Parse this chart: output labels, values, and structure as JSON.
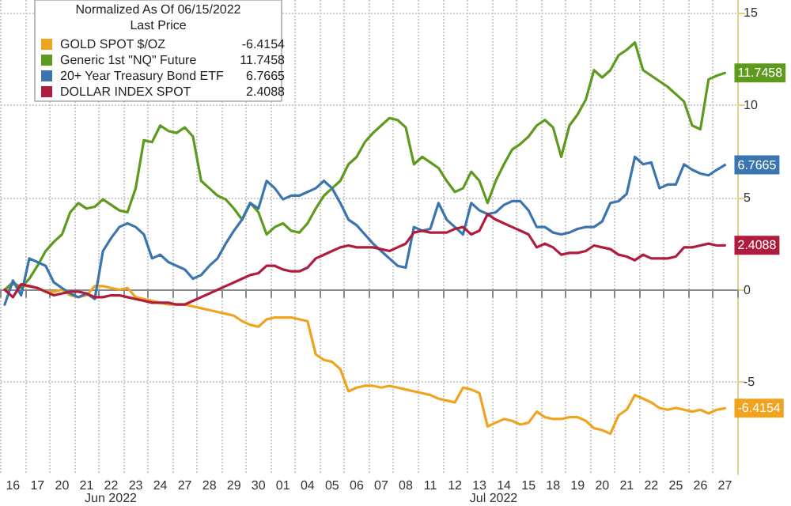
{
  "chart_data": {
    "type": "line",
    "legend_title": "Normalized As Of 06/15/2022",
    "annotations": [
      "Last Price",
      "Jun 2022",
      "Jul 2022"
    ],
    "categories": [
      null,
      "16",
      null,
      null,
      "17",
      null,
      null,
      "20",
      null,
      null,
      "21",
      null,
      null,
      "22",
      null,
      null,
      "23",
      null,
      null,
      "24",
      null,
      null,
      "27",
      null,
      null,
      "28",
      null,
      null,
      "29",
      null,
      null,
      "30",
      null,
      null,
      "01",
      null,
      null,
      "04",
      null,
      null,
      "05",
      null,
      null,
      "06",
      null,
      null,
      "07",
      null,
      null,
      "08",
      null,
      null,
      "11",
      null,
      null,
      "12",
      null,
      null,
      "13",
      null,
      null,
      "14",
      null,
      null,
      "15",
      null,
      null,
      "18",
      null,
      null,
      "19",
      null,
      null,
      "20",
      null,
      null,
      "21",
      null,
      null,
      "22",
      null,
      null,
      "25",
      null,
      null,
      "26",
      null,
      null,
      "27",
      null
    ],
    "series": [
      {
        "name": "GOLD SPOT $/OZ",
        "color": "#f0a31e",
        "values": [
          0,
          0.3,
          0.2,
          0.2,
          0.1,
          -0.1,
          -0.1,
          0,
          -0.3,
          -0.4,
          -0.3,
          0.2,
          0.2,
          0.1,
          0,
          0.1,
          -0.4,
          -0.5,
          -0.6,
          -0.7,
          -0.8,
          -0.8,
          -0.8,
          -0.9,
          -1.0,
          -1.1,
          -1.2,
          -1.3,
          -1.4,
          -1.7,
          -1.9,
          -2.0,
          -1.6,
          -1.5,
          -1.5,
          -1.5,
          -1.6,
          -1.7,
          -3.5,
          -3.8,
          -3.9,
          -4.3,
          -5.5,
          -5.3,
          -5.2,
          -5.2,
          -5.3,
          -5.2,
          -5.3,
          -5.4,
          -5.5,
          -5.6,
          -5.7,
          -5.9,
          -6.0,
          -6.1,
          -5.3,
          -5.4,
          -5.6,
          -7.4,
          -7.2,
          -7.0,
          -7.1,
          -7.3,
          -7.2,
          -6.6,
          -6.9,
          -7.0,
          -7.0,
          -6.9,
          -6.9,
          -7.1,
          -7.5,
          -7.6,
          -7.8,
          -6.8,
          -6.5,
          -5.7,
          -5.9,
          -6.1,
          -6.4,
          -6.5,
          -6.4,
          -6.5,
          -6.6,
          -6.5,
          -6.7,
          -6.5,
          -6.4154,
          null
        ],
        "value_labels": [
          null,
          null,
          null,
          null,
          null,
          null,
          null,
          null,
          null,
          null,
          null,
          null,
          null,
          null,
          null,
          null,
          null,
          null,
          null,
          null,
          null,
          null,
          null,
          null,
          null,
          null,
          null,
          null,
          null,
          null,
          null,
          null,
          null,
          null,
          null,
          null,
          null,
          null,
          null,
          null,
          null,
          null,
          null,
          null,
          null,
          null,
          null,
          null,
          null,
          null,
          null,
          null,
          null,
          null,
          null,
          null,
          null,
          null,
          null,
          null,
          null,
          null,
          null,
          null,
          null,
          null,
          null,
          null,
          null,
          null,
          null,
          null,
          null,
          null,
          null,
          null,
          null,
          null,
          null,
          null,
          null,
          null,
          null,
          null,
          null,
          null,
          null,
          null,
          "-6.4154",
          null
        ]
      },
      {
        "name": "Generic 1st \"NQ\" Future",
        "color": "#5e9a1e",
        "values": [
          0,
          0.4,
          0.1,
          0.6,
          1.3,
          2.1,
          2.6,
          3.0,
          4.2,
          4.7,
          4.4,
          4.5,
          4.9,
          4.6,
          4.3,
          4.2,
          5.5,
          8.1,
          8.0,
          8.9,
          8.6,
          8.5,
          8.8,
          8.3,
          5.9,
          5.5,
          5.1,
          4.9,
          4.4,
          3.8,
          4.7,
          4.2,
          3.0,
          3.4,
          3.6,
          3.2,
          3.1,
          3.6,
          4.4,
          5.1,
          5.5,
          5.9,
          6.8,
          7.2,
          8.0,
          8.5,
          8.9,
          9.3,
          9.2,
          8.8,
          6.8,
          7.2,
          6.9,
          6.6,
          5.9,
          5.3,
          5.5,
          6.4,
          5.9,
          4.7,
          5.9,
          6.8,
          7.6,
          7.9,
          8.3,
          8.9,
          9.2,
          8.8,
          7.2,
          8.9,
          9.5,
          10.3,
          11.9,
          11.5,
          11.9,
          12.7,
          13.0,
          13.4,
          11.9,
          11.6,
          11.3,
          11.0,
          10.6,
          10.2,
          8.9,
          8.7,
          11.4,
          11.6,
          11.7458,
          null
        ],
        "value_labels": [
          null,
          null,
          null,
          null,
          null,
          null,
          null,
          null,
          null,
          null,
          null,
          null,
          null,
          null,
          null,
          null,
          null,
          null,
          null,
          null,
          null,
          null,
          null,
          null,
          null,
          null,
          null,
          null,
          null,
          null,
          null,
          null,
          null,
          null,
          null,
          null,
          null,
          null,
          null,
          null,
          null,
          null,
          null,
          null,
          null,
          null,
          null,
          null,
          null,
          null,
          null,
          null,
          null,
          null,
          null,
          null,
          null,
          null,
          null,
          null,
          null,
          null,
          null,
          null,
          null,
          null,
          null,
          null,
          null,
          null,
          null,
          null,
          null,
          null,
          null,
          null,
          null,
          null,
          null,
          null,
          null,
          null,
          null,
          null,
          null,
          null,
          null,
          null,
          "11.7458",
          null
        ]
      },
      {
        "name": "20+ Year Treasury Bond ETF",
        "color": "#3a75b0",
        "values": [
          -0.8,
          0.5,
          -0.3,
          1.7,
          1.5,
          1.3,
          0.4,
          0.1,
          -0.2,
          -0.4,
          -0.2,
          -0.5,
          2.1,
          2.8,
          3.4,
          3.6,
          3.4,
          3.0,
          1.7,
          1.9,
          1.5,
          1.3,
          1.1,
          0.6,
          0.8,
          1.3,
          1.7,
          2.5,
          3.2,
          3.8,
          4.7,
          4.4,
          5.9,
          5.5,
          4.9,
          5.1,
          5.1,
          5.3,
          5.5,
          5.9,
          5.5,
          4.7,
          3.8,
          3.5,
          3.0,
          2.5,
          2.1,
          1.7,
          1.3,
          1.2,
          3.4,
          3.2,
          3.3,
          4.7,
          3.8,
          3.4,
          3.0,
          4.7,
          4.3,
          4.1,
          4.2,
          4.6,
          4.8,
          4.8,
          4.3,
          3.4,
          3.4,
          3.1,
          3.0,
          3.1,
          3.3,
          3.4,
          3.4,
          3.7,
          4.7,
          4.8,
          5.2,
          7.2,
          6.8,
          6.9,
          5.5,
          5.7,
          5.7,
          6.8,
          6.5,
          6.3,
          6.2,
          6.5,
          6.7665,
          null
        ],
        "value_labels": [
          null,
          null,
          null,
          null,
          null,
          null,
          null,
          null,
          null,
          null,
          null,
          null,
          null,
          null,
          null,
          null,
          null,
          null,
          null,
          null,
          null,
          null,
          null,
          null,
          null,
          null,
          null,
          null,
          null,
          null,
          null,
          null,
          null,
          null,
          null,
          null,
          null,
          null,
          null,
          null,
          null,
          null,
          null,
          null,
          null,
          null,
          null,
          null,
          null,
          null,
          null,
          null,
          null,
          null,
          null,
          null,
          null,
          null,
          null,
          null,
          null,
          null,
          null,
          null,
          null,
          null,
          null,
          null,
          null,
          null,
          null,
          null,
          null,
          null,
          null,
          null,
          null,
          null,
          null,
          null,
          null,
          null,
          null,
          null,
          null,
          null,
          null,
          null,
          "6.7665",
          null
        ]
      },
      {
        "name": "DOLLAR INDEX SPOT",
        "color": "#b01c3e",
        "values": [
          0,
          -0.4,
          0.3,
          0.2,
          0.1,
          -0.1,
          -0.3,
          -0.2,
          -0.1,
          -0.1,
          -0.2,
          -0.4,
          -0.4,
          -0.3,
          -0.3,
          -0.4,
          -0.5,
          -0.6,
          -0.7,
          -0.7,
          -0.7,
          -0.8,
          -0.8,
          -0.6,
          -0.4,
          -0.2,
          0,
          0.2,
          0.4,
          0.6,
          0.8,
          0.9,
          1.3,
          1.3,
          1.1,
          1.0,
          1.0,
          1.2,
          1.7,
          1.9,
          2.1,
          2.3,
          2.4,
          2.3,
          2.3,
          2.3,
          2.2,
          2.1,
          2.3,
          2.5,
          3.1,
          3.2,
          3.1,
          3.1,
          3.1,
          3.3,
          3.4,
          3.0,
          3.2,
          4.1,
          3.8,
          3.6,
          3.4,
          3.2,
          3.0,
          2.3,
          2.5,
          2.3,
          1.9,
          2.0,
          2.0,
          2.1,
          2.4,
          2.3,
          2.2,
          1.9,
          1.8,
          1.6,
          1.9,
          1.7,
          1.7,
          1.7,
          1.8,
          2.3,
          2.3,
          2.4,
          2.5,
          2.4,
          2.4088,
          null
        ],
        "value_labels": [
          null,
          null,
          null,
          null,
          null,
          null,
          null,
          null,
          null,
          null,
          null,
          null,
          null,
          null,
          null,
          null,
          null,
          null,
          null,
          null,
          null,
          null,
          null,
          null,
          null,
          null,
          null,
          null,
          null,
          null,
          null,
          null,
          null,
          null,
          null,
          null,
          null,
          null,
          null,
          null,
          null,
          null,
          null,
          null,
          null,
          null,
          null,
          null,
          null,
          null,
          null,
          null,
          null,
          null,
          null,
          null,
          null,
          null,
          null,
          null,
          null,
          null,
          null,
          null,
          null,
          null,
          null,
          null,
          null,
          null,
          null,
          null,
          null,
          null,
          null,
          null,
          null,
          null,
          null,
          null,
          null,
          null,
          null,
          null,
          null,
          null,
          null,
          null,
          "2.4088",
          null
        ]
      }
    ],
    "ylim": [
      -10,
      15.7
    ],
    "yticks": [
      -5,
      0,
      5,
      10,
      15
    ],
    "grid": true,
    "legend": "top left",
    "marker": "none",
    "line_style": "solid"
  }
}
